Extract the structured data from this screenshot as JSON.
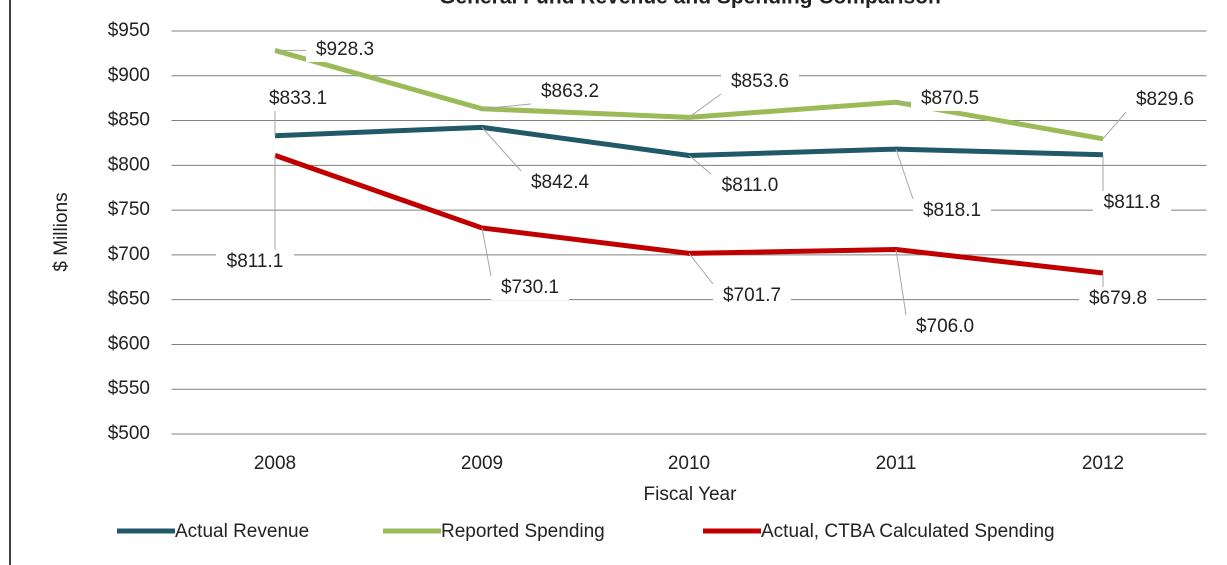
{
  "chart_data": {
    "type": "line",
    "title": "General Fund Revenue and Spending Comparison",
    "x_label": "Fiscal Year",
    "y_label": "$ Millions",
    "categories": [
      "2008",
      "2009",
      "2010",
      "2011",
      "2012"
    ],
    "series": [
      {
        "name": "Actual Revenue",
        "color": "#215968",
        "values": [
          833.1,
          842.4,
          811.0,
          818.1,
          811.8
        ],
        "value_labels": [
          "$833.1",
          "$842.4",
          "$811.0",
          "$818.1",
          "$811.8"
        ]
      },
      {
        "name": "Reported Spending",
        "color": "#9bbb59",
        "values": [
          928.3,
          863.2,
          853.6,
          870.5,
          829.6
        ],
        "value_labels": [
          "$928.3",
          "$863.2",
          "$853.6",
          "$870.5",
          "$829.6"
        ]
      },
      {
        "name": "Actual, CTBA Calculated Spending",
        "color": "#c00000",
        "values": [
          811.1,
          730.1,
          701.7,
          706.0,
          679.8
        ],
        "value_labels": [
          "$811.1",
          "$730.1",
          "$701.7",
          "$706.0",
          "$679.8"
        ]
      }
    ],
    "ylim": [
      500,
      950
    ],
    "yticks": [
      {
        "value": 500,
        "label": "$500"
      },
      {
        "value": 550,
        "label": "$550"
      },
      {
        "value": 600,
        "label": "$600"
      },
      {
        "value": 650,
        "label": "$650"
      },
      {
        "value": 700,
        "label": "$700"
      },
      {
        "value": 750,
        "label": "$750"
      },
      {
        "value": 800,
        "label": "$800"
      },
      {
        "value": 850,
        "label": "$850"
      },
      {
        "value": 900,
        "label": "$900"
      },
      {
        "value": 950,
        "label": "$950"
      }
    ],
    "grid": true,
    "legend": "bottom"
  }
}
